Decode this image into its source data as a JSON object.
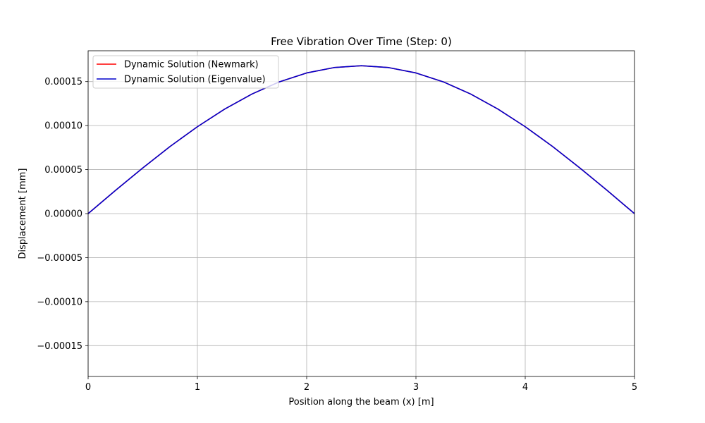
{
  "colors": {
    "background": "#ffffff",
    "grid": "#b0b0b0",
    "axes": "#000000",
    "newmark": "#ff0000",
    "eigenvalue": "#0000cc",
    "legend_border": "#cccccc"
  },
  "chart_data": {
    "type": "line",
    "title": "Free Vibration Over Time (Step: 0)",
    "xlabel": "Position along the beam (x) [m]",
    "ylabel": "Displacement [mm]",
    "xlim": [
      0,
      5
    ],
    "ylim": [
      -0.000185,
      0.000185
    ],
    "xticks": [
      0,
      1,
      2,
      3,
      4,
      5
    ],
    "xtick_labels": [
      "0",
      "1",
      "2",
      "3",
      "4",
      "5"
    ],
    "yticks": [
      -0.00015,
      -0.0001,
      -5e-05,
      0,
      5e-05,
      0.0001,
      0.00015
    ],
    "ytick_labels": [
      "−0.00015",
      "−0.00010",
      "−0.00005",
      "0.00000",
      "0.00005",
      "0.00010",
      "0.00015"
    ],
    "grid": true,
    "legend_position": "upper-left",
    "series": [
      {
        "name": "Dynamic Solution (Newmark)",
        "color": "#ff0000",
        "x": [
          0,
          0.25,
          0.5,
          0.75,
          1.0,
          1.25,
          1.5,
          1.75,
          2.0,
          2.25,
          2.5,
          2.75,
          3.0,
          3.25,
          3.5,
          3.75,
          4.0,
          4.25,
          4.5,
          4.75,
          5.0
        ],
        "y": [
          0,
          2.63e-05,
          5.19e-05,
          7.63e-05,
          9.87e-05,
          0.0001188,
          0.0001359,
          0.0001497,
          0.0001598,
          0.0001659,
          0.000168,
          0.0001659,
          0.0001598,
          0.0001497,
          0.0001359,
          0.0001188,
          9.87e-05,
          7.63e-05,
          5.19e-05,
          2.63e-05,
          0
        ]
      },
      {
        "name": "Dynamic Solution (Eigenvalue)",
        "color": "#0000cc",
        "x": [
          0,
          0.25,
          0.5,
          0.75,
          1.0,
          1.25,
          1.5,
          1.75,
          2.0,
          2.25,
          2.5,
          2.75,
          3.0,
          3.25,
          3.5,
          3.75,
          4.0,
          4.25,
          4.5,
          4.75,
          5.0
        ],
        "y": [
          0,
          2.63e-05,
          5.19e-05,
          7.63e-05,
          9.87e-05,
          0.0001188,
          0.0001359,
          0.0001497,
          0.0001598,
          0.0001659,
          0.000168,
          0.0001659,
          0.0001598,
          0.0001497,
          0.0001359,
          0.0001188,
          9.87e-05,
          7.63e-05,
          5.19e-05,
          2.63e-05,
          0
        ]
      }
    ]
  }
}
